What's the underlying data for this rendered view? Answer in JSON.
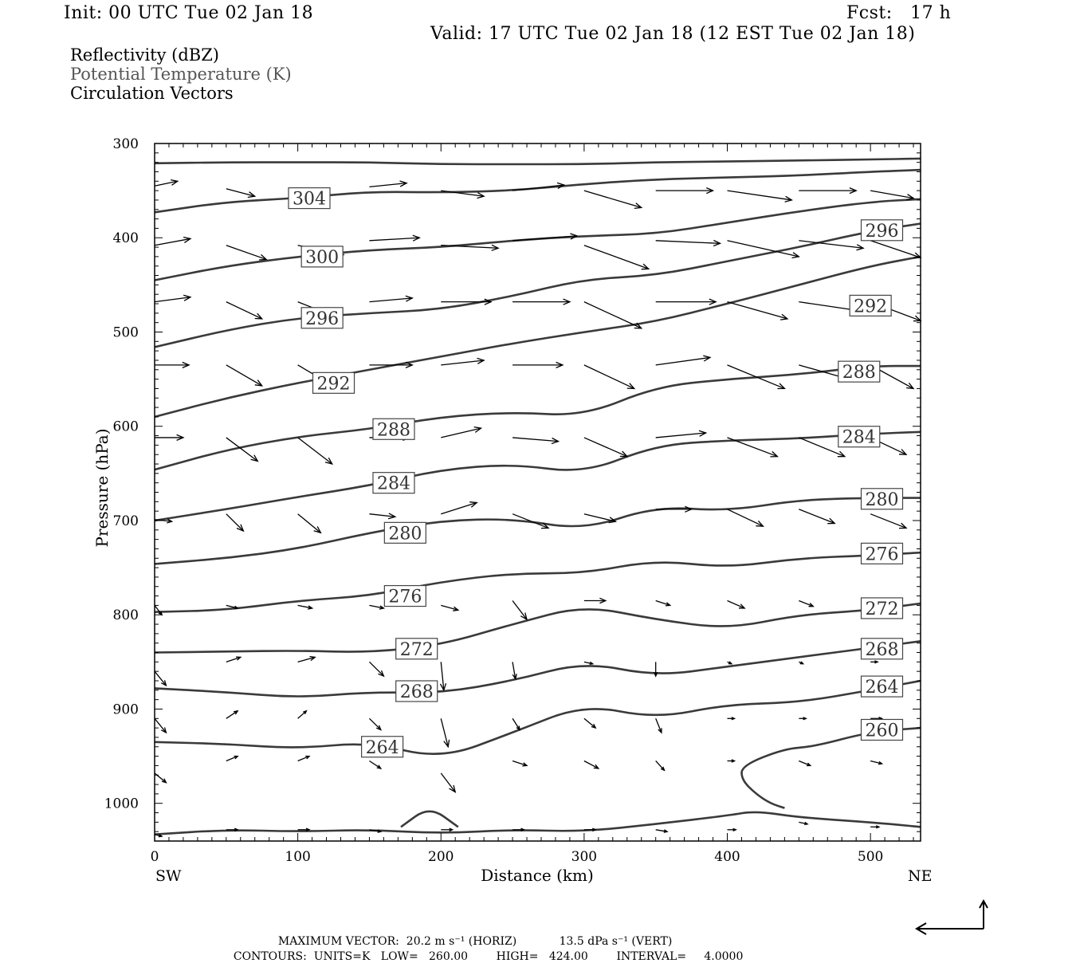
{
  "header": {
    "init": "Init: 00 UTC Tue 02 Jan 18",
    "fcst": "Fcst:   17 h",
    "valid": "Valid: 17 UTC Tue 02 Jan 18 (12 EST Tue 02 Jan 18)"
  },
  "variables": {
    "reflectivity": "Reflectivity (dBZ)",
    "theta": "Potential Temperature (K)",
    "vectors": "Circulation Vectors"
  },
  "colors": {
    "ink": "#000000",
    "contour": "#3a3a3a",
    "subtle": "#555555"
  },
  "chart_data": {
    "type": "line",
    "xlabel": "Distance (km)",
    "ylabel": "Pressure (hPa)",
    "xlim": [
      0,
      535
    ],
    "ylim": [
      1040,
      300
    ],
    "xticks": [
      0,
      100,
      200,
      300,
      400,
      500
    ],
    "yticks": [
      300,
      400,
      500,
      600,
      700,
      800,
      900,
      1000
    ],
    "x_end_labels": {
      "left": "SW",
      "right": "NE"
    },
    "contour_labels": [
      {
        "text": "304",
        "x": 108,
        "p": 358
      },
      {
        "text": "300",
        "x": 117,
        "p": 420
      },
      {
        "text": "296",
        "x": 117,
        "p": 485
      },
      {
        "text": "292",
        "x": 125,
        "p": 554
      },
      {
        "text": "288",
        "x": 167,
        "p": 603
      },
      {
        "text": "284",
        "x": 167,
        "p": 660
      },
      {
        "text": "280",
        "x": 175,
        "p": 713
      },
      {
        "text": "276",
        "x": 175,
        "p": 780
      },
      {
        "text": "272",
        "x": 183,
        "p": 836
      },
      {
        "text": "268",
        "x": 183,
        "p": 881
      },
      {
        "text": "264",
        "x": 159,
        "p": 940
      },
      {
        "text": "296",
        "x": 508,
        "p": 392
      },
      {
        "text": "292",
        "x": 500,
        "p": 472
      },
      {
        "text": "288",
        "x": 492,
        "p": 542
      },
      {
        "text": "284",
        "x": 492,
        "p": 611
      },
      {
        "text": "280",
        "x": 508,
        "p": 677
      },
      {
        "text": "276",
        "x": 508,
        "p": 735
      },
      {
        "text": "272",
        "x": 508,
        "p": 793
      },
      {
        "text": "268",
        "x": 508,
        "p": 836
      },
      {
        "text": "264",
        "x": 508,
        "p": 876
      },
      {
        "text": "260",
        "x": 508,
        "p": 922
      }
    ],
    "series": [
      {
        "x": [
          0,
          50,
          100,
          150,
          200,
          250,
          300,
          350,
          400,
          450,
          500,
          535
        ],
        "y": [
          321,
          320,
          320,
          320,
          322,
          322,
          322,
          320,
          319,
          318,
          317,
          316
        ]
      },
      {
        "x": [
          0,
          50,
          100,
          150,
          200,
          250,
          300,
          350,
          400,
          450,
          500,
          535
        ],
        "y": [
          373,
          362,
          358,
          351,
          352,
          350,
          343,
          338,
          336,
          334,
          330,
          328
        ]
      },
      {
        "x": [
          0,
          50,
          100,
          150,
          200,
          250,
          300,
          350,
          400,
          450,
          500,
          535
        ],
        "y": [
          445,
          430,
          420,
          413,
          410,
          403,
          398,
          396,
          384,
          372,
          362,
          359
        ]
      },
      {
        "x": [
          0,
          50,
          100,
          150,
          200,
          250,
          300,
          350,
          400,
          450,
          500,
          535
        ],
        "y": [
          516,
          498,
          485,
          480,
          476,
          462,
          444,
          440,
          425,
          410,
          393,
          385
        ]
      },
      {
        "x": [
          0,
          50,
          100,
          150,
          200,
          250,
          300,
          350,
          400,
          450,
          500,
          535
        ],
        "y": [
          590,
          570,
          554,
          540,
          526,
          512,
          500,
          489,
          470,
          450,
          430,
          420
        ]
      },
      {
        "x": [
          0,
          50,
          100,
          150,
          200,
          250,
          300,
          350,
          400,
          450,
          500,
          535
        ],
        "y": [
          646,
          625,
          611,
          603,
          590,
          585,
          589,
          558,
          550,
          545,
          536,
          536
        ]
      },
      {
        "x": [
          0,
          50,
          100,
          150,
          200,
          250,
          300,
          350,
          400,
          450,
          500,
          535
        ],
        "y": [
          700,
          688,
          675,
          663,
          646,
          640,
          650,
          620,
          615,
          613,
          608,
          606
        ]
      },
      {
        "x": [
          0,
          50,
          100,
          150,
          200,
          250,
          300,
          350,
          400,
          450,
          500,
          535
        ],
        "y": [
          746,
          740,
          730,
          713,
          700,
          698,
          710,
          685,
          690,
          678,
          676,
          676
        ]
      },
      {
        "x": [
          0,
          50,
          100,
          150,
          200,
          250,
          300,
          350,
          400,
          450,
          500,
          535
        ],
        "y": [
          797,
          795,
          785,
          780,
          765,
          756,
          756,
          742,
          750,
          740,
          737,
          734
        ]
      },
      {
        "x": [
          0,
          50,
          100,
          150,
          200,
          250,
          300,
          350,
          400,
          450,
          500,
          535
        ],
        "y": [
          840,
          839,
          838,
          840,
          832,
          810,
          790,
          805,
          815,
          800,
          795,
          788
        ]
      },
      {
        "x": [
          0,
          50,
          100,
          150,
          200,
          250,
          300,
          350,
          400,
          450,
          500,
          535
        ],
        "y": [
          878,
          882,
          888,
          882,
          883,
          870,
          850,
          865,
          855,
          845,
          835,
          828
        ]
      },
      {
        "x": [
          0,
          50,
          100,
          150,
          200,
          250,
          300,
          350,
          400,
          450,
          500,
          535
        ],
        "y": [
          935,
          937,
          942,
          935,
          953,
          925,
          895,
          910,
          895,
          893,
          880,
          870
        ]
      },
      {
        "x": [
          535,
          500,
          460,
          440,
          410,
          410,
          420,
          430,
          440
        ],
        "y": [
          920,
          924,
          940,
          942,
          960,
          975,
          990,
          1000,
          1005
        ]
      },
      {
        "x": [
          0,
          50,
          100,
          150,
          200,
          250,
          300,
          350,
          400,
          420,
          450,
          500,
          535
        ],
        "y": [
          1033,
          1028,
          1030,
          1028,
          1032,
          1028,
          1030,
          1022,
          1013,
          1008,
          1015,
          1020,
          1025
        ]
      },
      {
        "x": [
          172,
          192,
          212
        ],
        "y": [
          1025,
          1003,
          1025
        ]
      }
    ],
    "vectors": [
      {
        "x": 0,
        "p": 345,
        "dx": 16,
        "dp": -5
      },
      {
        "x": 50,
        "p": 348,
        "dx": 20,
        "dp": 8
      },
      {
        "x": 100,
        "p": 348,
        "dx": 18,
        "dp": 4
      },
      {
        "x": 150,
        "p": 346,
        "dx": 26,
        "dp": -4
      },
      {
        "x": 200,
        "p": 350,
        "dx": 30,
        "dp": 6
      },
      {
        "x": 250,
        "p": 350,
        "dx": 36,
        "dp": -6
      },
      {
        "x": 300,
        "p": 350,
        "dx": 40,
        "dp": 18
      },
      {
        "x": 350,
        "p": 350,
        "dx": 40,
        "dp": 0
      },
      {
        "x": 400,
        "p": 350,
        "dx": 45,
        "dp": 10
      },
      {
        "x": 450,
        "p": 350,
        "dx": 40,
        "dp": 0
      },
      {
        "x": 500,
        "p": 350,
        "dx": 30,
        "dp": 8
      },
      {
        "x": 0,
        "p": 408,
        "dx": 25,
        "dp": -7
      },
      {
        "x": 50,
        "p": 408,
        "dx": 28,
        "dp": 15
      },
      {
        "x": 100,
        "p": 408,
        "dx": 32,
        "dp": 10
      },
      {
        "x": 150,
        "p": 403,
        "dx": 35,
        "dp": -3
      },
      {
        "x": 200,
        "p": 408,
        "dx": 40,
        "dp": 3
      },
      {
        "x": 250,
        "p": 403,
        "dx": 45,
        "dp": -5
      },
      {
        "x": 300,
        "p": 408,
        "dx": 45,
        "dp": 25
      },
      {
        "x": 350,
        "p": 403,
        "dx": 45,
        "dp": 3
      },
      {
        "x": 400,
        "p": 403,
        "dx": 50,
        "dp": 17
      },
      {
        "x": 450,
        "p": 403,
        "dx": 45,
        "dp": 8
      },
      {
        "x": 500,
        "p": 403,
        "dx": 35,
        "dp": 18
      },
      {
        "x": 0,
        "p": 468,
        "dx": 25,
        "dp": -5
      },
      {
        "x": 50,
        "p": 468,
        "dx": 25,
        "dp": 18
      },
      {
        "x": 100,
        "p": 468,
        "dx": 30,
        "dp": 18
      },
      {
        "x": 150,
        "p": 468,
        "dx": 30,
        "dp": -4
      },
      {
        "x": 200,
        "p": 468,
        "dx": 35,
        "dp": 0
      },
      {
        "x": 250,
        "p": 468,
        "dx": 40,
        "dp": 0
      },
      {
        "x": 300,
        "p": 468,
        "dx": 40,
        "dp": 28
      },
      {
        "x": 350,
        "p": 468,
        "dx": 42,
        "dp": 0
      },
      {
        "x": 400,
        "p": 468,
        "dx": 42,
        "dp": 18
      },
      {
        "x": 450,
        "p": 468,
        "dx": 45,
        "dp": 10
      },
      {
        "x": 500,
        "p": 468,
        "dx": 35,
        "dp": 20
      },
      {
        "x": 0,
        "p": 535,
        "dx": 24,
        "dp": 0
      },
      {
        "x": 50,
        "p": 535,
        "dx": 25,
        "dp": 22
      },
      {
        "x": 100,
        "p": 535,
        "dx": 28,
        "dp": 25
      },
      {
        "x": 150,
        "p": 535,
        "dx": 30,
        "dp": 0
      },
      {
        "x": 200,
        "p": 535,
        "dx": 30,
        "dp": -5
      },
      {
        "x": 250,
        "p": 535,
        "dx": 35,
        "dp": 0
      },
      {
        "x": 300,
        "p": 535,
        "dx": 35,
        "dp": 25
      },
      {
        "x": 350,
        "p": 535,
        "dx": 38,
        "dp": -8
      },
      {
        "x": 400,
        "p": 535,
        "dx": 40,
        "dp": 25
      },
      {
        "x": 450,
        "p": 535,
        "dx": 35,
        "dp": 15
      },
      {
        "x": 500,
        "p": 535,
        "dx": 30,
        "dp": 25
      },
      {
        "x": 0,
        "p": 612,
        "dx": 20,
        "dp": 0
      },
      {
        "x": 50,
        "p": 612,
        "dx": 22,
        "dp": 25
      },
      {
        "x": 100,
        "p": 612,
        "dx": 24,
        "dp": 28
      },
      {
        "x": 150,
        "p": 612,
        "dx": 28,
        "dp": 0
      },
      {
        "x": 200,
        "p": 612,
        "dx": 28,
        "dp": -10
      },
      {
        "x": 250,
        "p": 612,
        "dx": 32,
        "dp": 4
      },
      {
        "x": 300,
        "p": 612,
        "dx": 30,
        "dp": 20
      },
      {
        "x": 350,
        "p": 612,
        "dx": 35,
        "dp": -5
      },
      {
        "x": 400,
        "p": 612,
        "dx": 35,
        "dp": 20
      },
      {
        "x": 450,
        "p": 612,
        "dx": 32,
        "dp": 20
      },
      {
        "x": 500,
        "p": 612,
        "dx": 25,
        "dp": 18
      },
      {
        "x": 0,
        "p": 699,
        "dx": 12,
        "dp": 2
      },
      {
        "x": 50,
        "p": 693,
        "dx": 12,
        "dp": 18
      },
      {
        "x": 100,
        "p": 693,
        "dx": 16,
        "dp": 20
      },
      {
        "x": 150,
        "p": 693,
        "dx": 18,
        "dp": 3
      },
      {
        "x": 200,
        "p": 693,
        "dx": 25,
        "dp": -12
      },
      {
        "x": 250,
        "p": 693,
        "dx": 25,
        "dp": 15
      },
      {
        "x": 300,
        "p": 693,
        "dx": 22,
        "dp": 8
      },
      {
        "x": 350,
        "p": 688,
        "dx": 25,
        "dp": 0
      },
      {
        "x": 400,
        "p": 688,
        "dx": 25,
        "dp": 18
      },
      {
        "x": 450,
        "p": 688,
        "dx": 25,
        "dp": 15
      },
      {
        "x": 500,
        "p": 693,
        "dx": 25,
        "dp": 15
      },
      {
        "x": 0,
        "p": 790,
        "dx": 5,
        "dp": 10
      },
      {
        "x": 50,
        "p": 790,
        "dx": 8,
        "dp": 3
      },
      {
        "x": 100,
        "p": 790,
        "dx": 10,
        "dp": 3
      },
      {
        "x": 150,
        "p": 790,
        "dx": 10,
        "dp": 3
      },
      {
        "x": 200,
        "p": 790,
        "dx": 12,
        "dp": 5
      },
      {
        "x": 250,
        "p": 785,
        "dx": 10,
        "dp": 20
      },
      {
        "x": 300,
        "p": 785,
        "dx": 15,
        "dp": 0
      },
      {
        "x": 350,
        "p": 785,
        "dx": 10,
        "dp": 5
      },
      {
        "x": 400,
        "p": 785,
        "dx": 12,
        "dp": 8
      },
      {
        "x": 450,
        "p": 785,
        "dx": 10,
        "dp": 6
      },
      {
        "x": 500,
        "p": 790,
        "dx": 5,
        "dp": 5
      },
      {
        "x": 0,
        "p": 860,
        "dx": 8,
        "dp": 15
      },
      {
        "x": 50,
        "p": 850,
        "dx": 10,
        "dp": -5
      },
      {
        "x": 100,
        "p": 850,
        "dx": 12,
        "dp": -5
      },
      {
        "x": 150,
        "p": 850,
        "dx": 10,
        "dp": 15
      },
      {
        "x": 200,
        "p": 850,
        "dx": 2,
        "dp": 30
      },
      {
        "x": 250,
        "p": 850,
        "dx": 2,
        "dp": 18
      },
      {
        "x": 300,
        "p": 850,
        "dx": 6,
        "dp": 2
      },
      {
        "x": 350,
        "p": 850,
        "dx": 0,
        "dp": 15
      },
      {
        "x": 400,
        "p": 850,
        "dx": 3,
        "dp": 2
      },
      {
        "x": 450,
        "p": 850,
        "dx": 3,
        "dp": 2
      },
      {
        "x": 500,
        "p": 850,
        "dx": 5,
        "dp": 0
      },
      {
        "x": 0,
        "p": 910,
        "dx": 8,
        "dp": 15
      },
      {
        "x": 50,
        "p": 910,
        "dx": 8,
        "dp": -8
      },
      {
        "x": 100,
        "p": 910,
        "dx": 6,
        "dp": -8
      },
      {
        "x": 150,
        "p": 910,
        "dx": 8,
        "dp": 12
      },
      {
        "x": 200,
        "p": 910,
        "dx": 5,
        "dp": 30
      },
      {
        "x": 250,
        "p": 910,
        "dx": 5,
        "dp": 12
      },
      {
        "x": 300,
        "p": 910,
        "dx": 8,
        "dp": 10
      },
      {
        "x": 350,
        "p": 910,
        "dx": 4,
        "dp": 15
      },
      {
        "x": 400,
        "p": 910,
        "dx": 5,
        "dp": 0
      },
      {
        "x": 450,
        "p": 910,
        "dx": 5,
        "dp": 0
      },
      {
        "x": 500,
        "p": 910,
        "dx": 8,
        "dp": 0
      },
      {
        "x": 0,
        "p": 968,
        "dx": 8,
        "dp": 10
      },
      {
        "x": 50,
        "p": 955,
        "dx": 8,
        "dp": -5
      },
      {
        "x": 100,
        "p": 955,
        "dx": 8,
        "dp": -5
      },
      {
        "x": 150,
        "p": 955,
        "dx": 8,
        "dp": 8
      },
      {
        "x": 200,
        "p": 968,
        "dx": 10,
        "dp": 20
      },
      {
        "x": 250,
        "p": 955,
        "dx": 10,
        "dp": 5
      },
      {
        "x": 300,
        "p": 955,
        "dx": 10,
        "dp": 8
      },
      {
        "x": 350,
        "p": 955,
        "dx": 6,
        "dp": 10
      },
      {
        "x": 400,
        "p": 955,
        "dx": 5,
        "dp": 0
      },
      {
        "x": 450,
        "p": 955,
        "dx": 8,
        "dp": 5
      },
      {
        "x": 500,
        "p": 955,
        "dx": 8,
        "dp": 3
      },
      {
        "x": 0,
        "p": 1033,
        "dx": 5,
        "dp": 2
      },
      {
        "x": 50,
        "p": 1028,
        "dx": 8,
        "dp": 0
      },
      {
        "x": 100,
        "p": 1028,
        "dx": 8,
        "dp": 0
      },
      {
        "x": 150,
        "p": 1028,
        "dx": 8,
        "dp": 2
      },
      {
        "x": 200,
        "p": 1028,
        "dx": 8,
        "dp": 0
      },
      {
        "x": 250,
        "p": 1028,
        "dx": 8,
        "dp": 0
      },
      {
        "x": 300,
        "p": 1028,
        "dx": 8,
        "dp": 0
      },
      {
        "x": 350,
        "p": 1028,
        "dx": 8,
        "dp": 2
      },
      {
        "x": 400,
        "p": 1028,
        "dx": 6,
        "dp": 0
      },
      {
        "x": 450,
        "p": 1020,
        "dx": 6,
        "dp": 2
      },
      {
        "x": 500,
        "p": 1025,
        "dx": 6,
        "dp": 0
      }
    ]
  },
  "footer": {
    "max_vector_label": "MAXIMUM VECTOR:",
    "horiz": "20.2 m s⁻¹ (HORIZ)",
    "vert": "13.5 dPa s⁻¹ (VERT)",
    "contours_label": "CONTOURS:",
    "units": "UNITS=K",
    "low": "LOW=   260.00",
    "high": "HIGH=   424.00",
    "interval": "INTERVAL=     4.0000"
  }
}
